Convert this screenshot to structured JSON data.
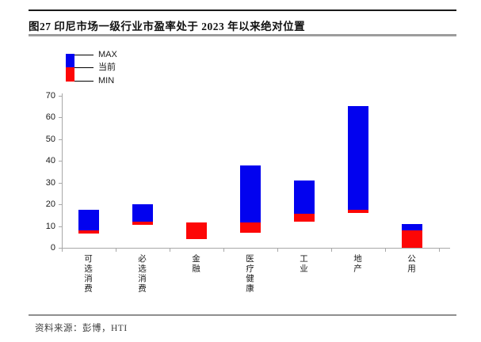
{
  "header": {
    "title": "图27 印尼市场一级行业市盈率处于 2023 年以来绝对位置"
  },
  "legend": {
    "items": [
      {
        "label": "MAX"
      },
      {
        "label": "当前"
      },
      {
        "label": "MIN"
      }
    ]
  },
  "chart_data": {
    "type": "bar",
    "subtype": "floating-range-max-current-min",
    "title": "图27 印尼市场一级行业市盈率处于 2023 年以来绝对位置",
    "categories": [
      "可选消费",
      "必选消费",
      "金融",
      "医疗健康",
      "工业",
      "地产",
      "公用"
    ],
    "series": [
      {
        "name": "MAX",
        "values": [
          17.5,
          20,
          11.5,
          38,
          31,
          65,
          11
        ]
      },
      {
        "name": "当前",
        "values": [
          8,
          12,
          11.5,
          11.5,
          15.5,
          17.5,
          8
        ]
      },
      {
        "name": "MIN",
        "values": [
          6.5,
          10.5,
          4,
          7,
          12,
          16,
          0
        ]
      }
    ],
    "ylabel": "",
    "xlabel": "",
    "ylim": [
      0,
      70
    ],
    "yticks": [
      0,
      10,
      20,
      30,
      40,
      50,
      60,
      70
    ],
    "grid": false,
    "legend_position": "top-left-inside",
    "colors": {
      "max_segment_blue": "#0202ef",
      "min_segment_red": "#fd0606",
      "axis_gray": "#a8a8a8"
    }
  },
  "footer": {
    "source": "资料来源：彭博，HTI"
  }
}
